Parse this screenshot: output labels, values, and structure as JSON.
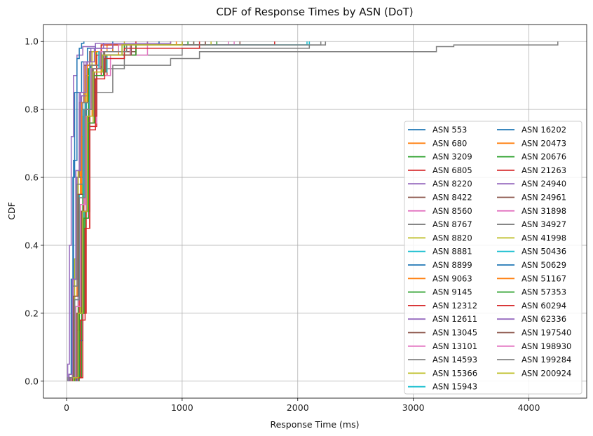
{
  "chart_data": {
    "type": "line",
    "step": true,
    "title": "CDF of Response Times by ASN (DoT)",
    "xlabel": "Response Time (ms)",
    "ylabel": "CDF",
    "xlim": [
      -200,
      4500
    ],
    "ylim": [
      -0.05,
      1.05
    ],
    "xticks": [
      0,
      1000,
      2000,
      3000,
      4000
    ],
    "yticks": [
      0.0,
      0.2,
      0.4,
      0.6,
      0.8,
      1.0
    ],
    "ytick_labels": [
      "0.0",
      "0.2",
      "0.4",
      "0.6",
      "0.8",
      "1.0"
    ],
    "grid": true,
    "legend_location": "center-right",
    "legend_columns": 2,
    "series": [
      {
        "name": "ASN 553",
        "color": "#1f77b4",
        "x": [
          20,
          40,
          60,
          90,
          130,
          180,
          250,
          400
        ],
        "y": [
          0.02,
          0.3,
          0.65,
          0.85,
          0.94,
          0.98,
          0.995,
          1.0
        ]
      },
      {
        "name": "ASN 680",
        "color": "#ff7f0e",
        "x": [
          30,
          60,
          90,
          120,
          160,
          220,
          350,
          700
        ],
        "y": [
          0.01,
          0.25,
          0.55,
          0.8,
          0.93,
          0.97,
          0.99,
          1.0
        ]
      },
      {
        "name": "ASN 3209",
        "color": "#2ca02c",
        "x": [
          40,
          70,
          100,
          140,
          190,
          260,
          500,
          1200
        ],
        "y": [
          0.01,
          0.2,
          0.5,
          0.78,
          0.92,
          0.97,
          0.99,
          1.0
        ]
      },
      {
        "name": "ASN 6805",
        "color": "#d62728",
        "x": [
          50,
          80,
          110,
          150,
          200,
          300,
          600,
          1300
        ],
        "y": [
          0.01,
          0.15,
          0.45,
          0.75,
          0.9,
          0.96,
          0.99,
          1.0
        ]
      },
      {
        "name": "ASN 8220",
        "color": "#9467bd",
        "x": [
          10,
          25,
          40,
          60,
          90,
          140,
          250,
          600
        ],
        "y": [
          0.05,
          0.4,
          0.72,
          0.9,
          0.96,
          0.985,
          0.995,
          1.0
        ]
      },
      {
        "name": "ASN 8422",
        "color": "#8c564b",
        "x": [
          20,
          50,
          80,
          110,
          150,
          200,
          300,
          800
        ],
        "y": [
          0.02,
          0.3,
          0.6,
          0.82,
          0.93,
          0.97,
          0.99,
          1.0
        ]
      },
      {
        "name": "ASN 8560",
        "color": "#e377c2",
        "x": [
          30,
          60,
          100,
          150,
          210,
          300,
          500,
          1400
        ],
        "y": [
          0.01,
          0.22,
          0.52,
          0.8,
          0.92,
          0.97,
          0.99,
          1.0
        ]
      },
      {
        "name": "ASN 8767",
        "color": "#7f7f7f",
        "x": [
          20,
          60,
          110,
          170,
          260,
          500,
          1000,
          2100
        ],
        "y": [
          0.02,
          0.25,
          0.55,
          0.8,
          0.92,
          0.96,
          0.98,
          1.0
        ]
      },
      {
        "name": "ASN 8820",
        "color": "#bcbd22",
        "x": [
          40,
          80,
          120,
          170,
          230,
          330,
          500,
          1100
        ],
        "y": [
          0.01,
          0.2,
          0.5,
          0.76,
          0.9,
          0.96,
          0.99,
          1.0
        ]
      },
      {
        "name": "ASN 8881",
        "color": "#17becf",
        "x": [
          30,
          70,
          110,
          160,
          210,
          300,
          450,
          2080
        ],
        "y": [
          0.01,
          0.25,
          0.55,
          0.82,
          0.93,
          0.97,
          0.99,
          1.0
        ]
      },
      {
        "name": "ASN 8899",
        "color": "#1f77b4",
        "x": [
          20,
          40,
          55,
          70,
          90,
          110,
          130,
          150
        ],
        "y": [
          0.02,
          0.3,
          0.6,
          0.85,
          0.95,
          0.98,
          0.995,
          1.0
        ]
      },
      {
        "name": "ASN 9063",
        "color": "#ff7f0e",
        "x": [
          50,
          90,
          130,
          170,
          220,
          300,
          450,
          900
        ],
        "y": [
          0.01,
          0.2,
          0.5,
          0.78,
          0.91,
          0.96,
          0.99,
          1.0
        ]
      },
      {
        "name": "ASN 9145",
        "color": "#2ca02c",
        "x": [
          110,
          130,
          160,
          190,
          230,
          300,
          450,
          1000
        ],
        "y": [
          0.01,
          0.2,
          0.5,
          0.8,
          0.92,
          0.97,
          0.99,
          1.0
        ]
      },
      {
        "name": "ASN 12312",
        "color": "#d62728",
        "x": [
          60,
          110,
          160,
          200,
          260,
          350,
          600,
          1800
        ],
        "y": [
          0.01,
          0.2,
          0.45,
          0.75,
          0.9,
          0.96,
          0.99,
          1.0
        ]
      },
      {
        "name": "ASN 12611",
        "color": "#9467bd",
        "x": [
          30,
          60,
          90,
          130,
          180,
          250,
          400,
          900
        ],
        "y": [
          0.01,
          0.3,
          0.6,
          0.84,
          0.94,
          0.98,
          0.995,
          1.0
        ]
      },
      {
        "name": "ASN 13045",
        "color": "#8c564b",
        "x": [
          40,
          80,
          120,
          170,
          230,
          330,
          600,
          1500
        ],
        "y": [
          0.01,
          0.22,
          0.52,
          0.8,
          0.92,
          0.97,
          0.99,
          1.0
        ]
      },
      {
        "name": "ASN 13101",
        "color": "#e377c2",
        "x": [
          50,
          90,
          140,
          190,
          260,
          380,
          700,
          1450
        ],
        "y": [
          0.01,
          0.2,
          0.48,
          0.76,
          0.9,
          0.96,
          0.99,
          1.0
        ]
      },
      {
        "name": "ASN 14593",
        "color": "#7f7f7f",
        "x": [
          10,
          50,
          100,
          200,
          400,
          900,
          1150,
          1500,
          3200,
          3350,
          4250
        ],
        "y": [
          0.01,
          0.3,
          0.6,
          0.85,
          0.93,
          0.95,
          0.97,
          0.97,
          0.985,
          0.99,
          1.0
        ]
      },
      {
        "name": "ASN 15366",
        "color": "#bcbd22",
        "x": [
          40,
          70,
          100,
          130,
          170,
          220,
          300,
          500
        ],
        "y": [
          0.01,
          0.36,
          0.62,
          0.72,
          0.9,
          0.97,
          0.99,
          1.0
        ]
      },
      {
        "name": "ASN 15943",
        "color": "#17becf",
        "x": [
          60,
          100,
          150,
          200,
          260,
          350,
          550,
          1100
        ],
        "y": [
          0.01,
          0.2,
          0.5,
          0.78,
          0.91,
          0.96,
          0.99,
          1.0
        ]
      },
      {
        "name": "ASN 16202",
        "color": "#1f77b4",
        "x": [
          90,
          110,
          140,
          170,
          210,
          280,
          400,
          800
        ],
        "y": [
          0.01,
          0.12,
          0.5,
          0.82,
          0.93,
          0.97,
          0.99,
          1.0
        ]
      },
      {
        "name": "ASN 20473",
        "color": "#ff7f0e",
        "x": [
          30,
          60,
          90,
          130,
          180,
          250,
          400,
          1000
        ],
        "y": [
          0.01,
          0.25,
          0.55,
          0.82,
          0.93,
          0.97,
          0.99,
          1.0
        ]
      },
      {
        "name": "ASN 20676",
        "color": "#2ca02c",
        "x": [
          50,
          90,
          130,
          180,
          240,
          340,
          600,
          1300
        ],
        "y": [
          0.01,
          0.2,
          0.5,
          0.78,
          0.91,
          0.96,
          0.99,
          1.0
        ]
      },
      {
        "name": "ASN 21263",
        "color": "#d62728",
        "x": [
          100,
          140,
          170,
          200,
          230,
          260,
          300,
          600
        ],
        "y": [
          0.01,
          0.2,
          0.5,
          0.78,
          0.78,
          0.96,
          0.99,
          1.0
        ]
      },
      {
        "name": "ASN 24940",
        "color": "#9467bd",
        "x": [
          20,
          50,
          80,
          120,
          170,
          240,
          400,
          900
        ],
        "y": [
          0.02,
          0.3,
          0.62,
          0.85,
          0.94,
          0.98,
          0.995,
          1.0
        ]
      },
      {
        "name": "ASN 24961",
        "color": "#8c564b",
        "x": [
          30,
          60,
          100,
          150,
          200,
          300,
          500,
          1100
        ],
        "y": [
          0.01,
          0.25,
          0.55,
          0.8,
          0.92,
          0.97,
          0.99,
          1.0
        ]
      },
      {
        "name": "ASN 31898",
        "color": "#e377c2",
        "x": [
          40,
          80,
          120,
          170,
          230,
          330,
          550,
          1200
        ],
        "y": [
          0.01,
          0.22,
          0.5,
          0.78,
          0.91,
          0.96,
          0.99,
          1.0
        ]
      },
      {
        "name": "ASN 34927",
        "color": "#7f7f7f",
        "x": [
          20,
          50,
          90,
          140,
          200,
          300,
          500,
          2240
        ],
        "y": [
          0.02,
          0.28,
          0.58,
          0.82,
          0.93,
          0.97,
          0.99,
          1.0
        ]
      },
      {
        "name": "ASN 41998",
        "color": "#bcbd22",
        "x": [
          50,
          90,
          130,
          180,
          240,
          340,
          560,
          1250
        ],
        "y": [
          0.01,
          0.2,
          0.5,
          0.78,
          0.91,
          0.96,
          0.99,
          1.0
        ]
      },
      {
        "name": "ASN 50436",
        "color": "#17becf",
        "x": [
          40,
          70,
          110,
          150,
          200,
          280,
          450,
          2100
        ],
        "y": [
          0.01,
          0.24,
          0.54,
          0.8,
          0.92,
          0.97,
          0.99,
          1.0
        ]
      },
      {
        "name": "ASN 50629",
        "color": "#1f77b4",
        "x": [
          60,
          100,
          140,
          180,
          230,
          310,
          480,
          1000
        ],
        "y": [
          0.01,
          0.2,
          0.5,
          0.78,
          0.91,
          0.96,
          0.99,
          1.0
        ]
      },
      {
        "name": "ASN 51167",
        "color": "#ff7f0e",
        "x": [
          40,
          80,
          120,
          160,
          210,
          290,
          450,
          950
        ],
        "y": [
          0.01,
          0.22,
          0.52,
          0.8,
          0.92,
          0.97,
          0.99,
          1.0
        ]
      },
      {
        "name": "ASN 57353",
        "color": "#2ca02c",
        "x": [
          70,
          110,
          150,
          190,
          240,
          320,
          500,
          1050
        ],
        "y": [
          0.01,
          0.2,
          0.48,
          0.76,
          0.9,
          0.96,
          0.99,
          1.0
        ]
      },
      {
        "name": "ASN 60294",
        "color": "#d62728",
        "x": [
          80,
          120,
          160,
          200,
          250,
          330,
          500,
          1150
        ],
        "y": [
          0.01,
          0.18,
          0.45,
          0.74,
          0.89,
          0.95,
          0.98,
          1.0
        ]
      },
      {
        "name": "ASN 62336",
        "color": "#9467bd",
        "x": [
          20,
          50,
          80,
          110,
          150,
          210,
          320,
          700
        ],
        "y": [
          0.02,
          0.3,
          0.62,
          0.85,
          0.94,
          0.98,
          0.995,
          1.0
        ]
      },
      {
        "name": "ASN 197540",
        "color": "#8c564b",
        "x": [
          50,
          90,
          130,
          180,
          240,
          340,
          560,
          1200
        ],
        "y": [
          0.01,
          0.2,
          0.5,
          0.78,
          0.91,
          0.96,
          0.99,
          1.0
        ]
      },
      {
        "name": "ASN 198930",
        "color": "#e377c2",
        "x": [
          40,
          80,
          120,
          160,
          210,
          290,
          450,
          1000
        ],
        "y": [
          0.01,
          0.22,
          0.52,
          0.8,
          0.92,
          0.97,
          0.99,
          1.0
        ]
      },
      {
        "name": "ASN 199284",
        "color": "#7f7f7f",
        "x": [
          30,
          70,
          110,
          160,
          220,
          320,
          520,
          2200
        ],
        "y": [
          0.01,
          0.24,
          0.54,
          0.8,
          0.92,
          0.97,
          0.99,
          1.0
        ]
      },
      {
        "name": "ASN 200924",
        "color": "#bcbd22",
        "x": [
          60,
          100,
          140,
          180,
          230,
          310,
          480,
          1000
        ],
        "y": [
          0.01,
          0.2,
          0.5,
          0.78,
          0.91,
          0.96,
          0.99,
          1.0
        ]
      }
    ]
  }
}
